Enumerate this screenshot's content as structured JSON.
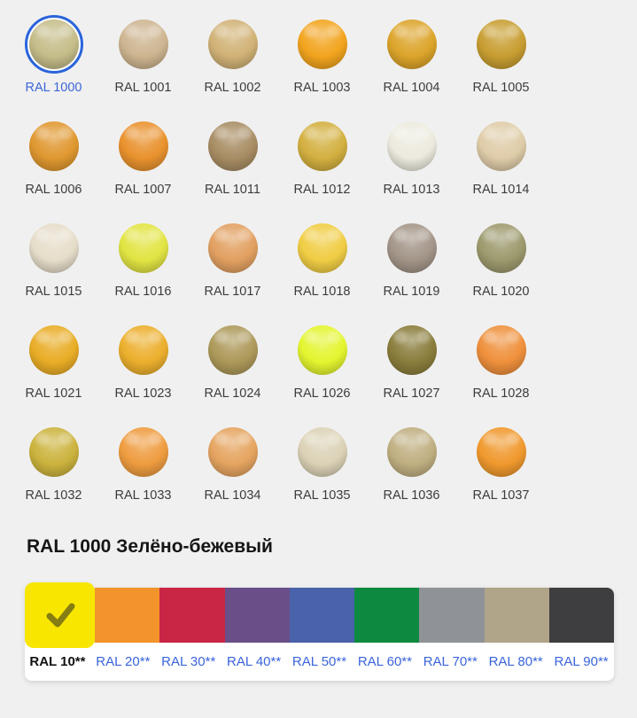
{
  "page": {
    "bg": "#F0F0F0",
    "ring_blue": "#2A64DB",
    "selected_label_blue": "#3D66D8",
    "link_blue": "#3A64DC",
    "label_color": "#3C3C3C",
    "heading_color": "#151515",
    "check_icon_color": "#857D12"
  },
  "grid": {
    "items": [
      {
        "label": "RAL 1000",
        "color": "#C5BD89",
        "selected": true
      },
      {
        "label": "RAL 1001",
        "color": "#CDB590",
        "selected": false
      },
      {
        "label": "RAL 1002",
        "color": "#D1B276",
        "selected": false
      },
      {
        "label": "RAL 1003",
        "color": "#F2A41E",
        "selected": false
      },
      {
        "label": "RAL 1004",
        "color": "#DCA42A",
        "selected": false
      },
      {
        "label": "RAL 1005",
        "color": "#C89E32",
        "selected": false
      },
      {
        "label": "RAL 1006",
        "color": "#E09830",
        "selected": false
      },
      {
        "label": "RAL 1007",
        "color": "#E9922E",
        "selected": false
      },
      {
        "label": "RAL 1011",
        "color": "#A88D64",
        "selected": false
      },
      {
        "label": "RAL 1012",
        "color": "#D3B040",
        "selected": false
      },
      {
        "label": "RAL 1013",
        "color": "#ECEADE",
        "selected": false
      },
      {
        "label": "RAL 1014",
        "color": "#DFCCA8",
        "selected": false
      },
      {
        "label": "RAL 1015",
        "color": "#E6DDC9",
        "selected": false
      },
      {
        "label": "RAL 1016",
        "color": "#E2E443",
        "selected": false
      },
      {
        "label": "RAL 1017",
        "color": "#E2A061",
        "selected": false
      },
      {
        "label": "RAL 1018",
        "color": "#F0CD44",
        "selected": false
      },
      {
        "label": "RAL 1019",
        "color": "#A39588",
        "selected": false
      },
      {
        "label": "RAL 1020",
        "color": "#9D9A6E",
        "selected": false
      },
      {
        "label": "RAL 1021",
        "color": "#E9AD26",
        "selected": false
      },
      {
        "label": "RAL 1023",
        "color": "#ECAF2D",
        "selected": false
      },
      {
        "label": "RAL 1024",
        "color": "#AD995A",
        "selected": false
      },
      {
        "label": "RAL 1026",
        "color": "#E3F52F",
        "selected": false
      },
      {
        "label": "RAL 1027",
        "color": "#8A7D3C",
        "selected": false
      },
      {
        "label": "RAL 1028",
        "color": "#EF903C",
        "selected": false
      },
      {
        "label": "RAL 1032",
        "color": "#CCB33E",
        "selected": false
      },
      {
        "label": "RAL 1033",
        "color": "#EF9C40",
        "selected": false
      },
      {
        "label": "RAL 1034",
        "color": "#E5A460",
        "selected": false
      },
      {
        "label": "RAL 1035",
        "color": "#DBD2B6",
        "selected": false
      },
      {
        "label": "RAL 1036",
        "color": "#C0AF81",
        "selected": false
      },
      {
        "label": "RAL 1037",
        "color": "#F0992E",
        "selected": false
      }
    ]
  },
  "heading": {
    "text": "RAL 1000 Зелёно-бежевый"
  },
  "palette": {
    "groups": [
      {
        "label": "RAL 10**",
        "color": "#F8E600",
        "selected": true
      },
      {
        "label": "RAL 20**",
        "color": "#F2942B",
        "selected": false
      },
      {
        "label": "RAL 30**",
        "color": "#C92545",
        "selected": false
      },
      {
        "label": "RAL 40**",
        "color": "#6A4E88",
        "selected": false
      },
      {
        "label": "RAL 50**",
        "color": "#4A62AC",
        "selected": false
      },
      {
        "label": "RAL 60**",
        "color": "#0D8A3F",
        "selected": false
      },
      {
        "label": "RAL 70**",
        "color": "#8F9397",
        "selected": false
      },
      {
        "label": "RAL 80**",
        "color": "#B0A489",
        "selected": false
      },
      {
        "label": "RAL 90**",
        "color": "#3E3D3F",
        "selected": false
      }
    ]
  }
}
